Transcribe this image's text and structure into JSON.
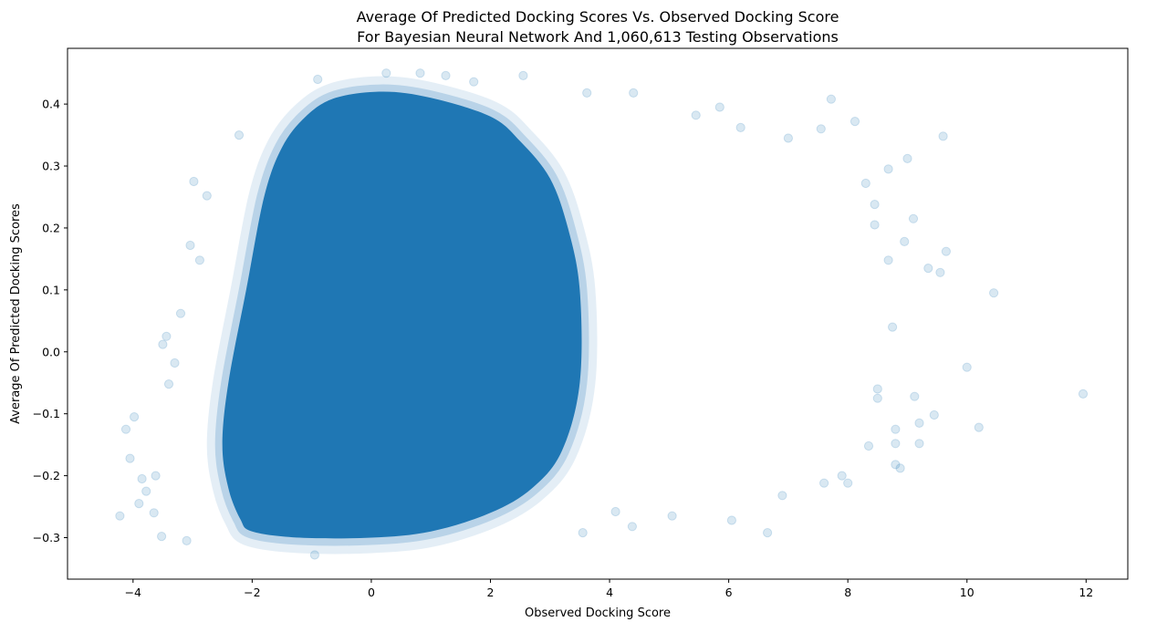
{
  "chart_data": {
    "type": "scatter",
    "title_lines": [
      "Average Of Predicted Docking Scores Vs. Observed Docking Score",
      "For Bayesian Neural Network And 1,060,613 Testing Observations"
    ],
    "xlabel": "Observed Docking Score",
    "ylabel": "Average Of Predicted Docking Scores",
    "xlim": [
      -5.1,
      12.7
    ],
    "ylim": [
      -0.367,
      0.49
    ],
    "x_ticks": [
      -4,
      -2,
      0,
      2,
      4,
      6,
      8,
      10,
      12
    ],
    "x_tick_labels": [
      "−4",
      "−2",
      "0",
      "2",
      "4",
      "6",
      "8",
      "10",
      "12"
    ],
    "y_ticks": [
      -0.3,
      -0.2,
      -0.1,
      0.0,
      0.1,
      0.2,
      0.3,
      0.4
    ],
    "y_tick_labels": [
      "−0.3",
      "−0.2",
      "−0.1",
      "0.0",
      "0.1",
      "0.2",
      "0.3",
      "0.4"
    ],
    "grid": false,
    "legend": "none",
    "series": [
      {
        "color": "#1f77b4",
        "marker_alpha": 0.12,
        "dense_core_outline": [
          [
            -2.0,
            -0.29
          ],
          [
            -1.2,
            -0.3
          ],
          [
            0.0,
            -0.3
          ],
          [
            1.0,
            -0.29
          ],
          [
            2.0,
            -0.26
          ],
          [
            2.7,
            -0.22
          ],
          [
            3.2,
            -0.16
          ],
          [
            3.5,
            -0.05
          ],
          [
            3.5,
            0.1
          ],
          [
            3.3,
            0.2
          ],
          [
            3.0,
            0.28
          ],
          [
            2.5,
            0.34
          ],
          [
            2.0,
            0.38
          ],
          [
            1.0,
            0.41
          ],
          [
            0.2,
            0.42
          ],
          [
            -0.6,
            0.41
          ],
          [
            -1.1,
            0.38
          ],
          [
            -1.5,
            0.33
          ],
          [
            -1.8,
            0.25
          ],
          [
            -2.1,
            0.1
          ],
          [
            -2.4,
            -0.05
          ],
          [
            -2.5,
            -0.15
          ],
          [
            -2.4,
            -0.22
          ],
          [
            -2.2,
            -0.27
          ]
        ],
        "outlier_points": [
          [
            11.95,
            -0.068
          ],
          [
            10.45,
            0.095
          ],
          [
            10.2,
            -0.122
          ],
          [
            10.0,
            -0.025
          ],
          [
            9.6,
            0.348
          ],
          [
            9.65,
            0.162
          ],
          [
            9.55,
            0.128
          ],
          [
            9.45,
            -0.102
          ],
          [
            9.35,
            0.135
          ],
          [
            9.2,
            -0.148
          ],
          [
            9.2,
            -0.115
          ],
          [
            9.12,
            -0.072
          ],
          [
            9.1,
            0.215
          ],
          [
            9.0,
            0.312
          ],
          [
            8.95,
            0.178
          ],
          [
            8.88,
            -0.188
          ],
          [
            8.8,
            -0.182
          ],
          [
            8.8,
            -0.148
          ],
          [
            8.8,
            -0.125
          ],
          [
            8.75,
            0.04
          ],
          [
            8.68,
            0.295
          ],
          [
            8.68,
            0.148
          ],
          [
            8.5,
            -0.06
          ],
          [
            8.5,
            -0.075
          ],
          [
            8.45,
            0.205
          ],
          [
            8.45,
            0.238
          ],
          [
            8.35,
            -0.152
          ],
          [
            8.3,
            0.272
          ],
          [
            8.12,
            0.372
          ],
          [
            7.9,
            -0.2
          ],
          [
            7.72,
            0.408
          ],
          [
            -4.22,
            -0.265
          ],
          [
            -4.12,
            -0.125
          ],
          [
            -4.05,
            -0.172
          ],
          [
            -3.98,
            -0.105
          ],
          [
            -3.9,
            -0.245
          ],
          [
            -3.85,
            -0.205
          ],
          [
            -3.78,
            -0.225
          ],
          [
            -3.65,
            -0.26
          ],
          [
            -3.62,
            -0.2
          ],
          [
            -3.52,
            -0.298
          ],
          [
            -3.5,
            0.012
          ],
          [
            -3.44,
            0.025
          ],
          [
            -3.4,
            -0.052
          ],
          [
            -3.3,
            -0.018
          ],
          [
            -3.2,
            0.062
          ],
          [
            -3.1,
            -0.305
          ],
          [
            -3.04,
            0.172
          ],
          [
            -2.98,
            0.275
          ],
          [
            -2.88,
            0.148
          ],
          [
            -2.76,
            0.252
          ],
          [
            -2.22,
            0.35
          ],
          [
            -0.95,
            -0.328
          ],
          [
            -0.9,
            0.44
          ],
          [
            0.25,
            0.45
          ],
          [
            0.82,
            0.45
          ],
          [
            1.25,
            0.446
          ],
          [
            1.72,
            0.436
          ],
          [
            2.55,
            0.446
          ],
          [
            3.55,
            -0.292
          ],
          [
            3.62,
            0.418
          ],
          [
            4.1,
            -0.258
          ],
          [
            4.38,
            -0.282
          ],
          [
            4.4,
            0.418
          ],
          [
            5.05,
            -0.265
          ],
          [
            5.45,
            0.382
          ],
          [
            5.85,
            0.395
          ],
          [
            6.05,
            -0.272
          ],
          [
            6.2,
            0.362
          ],
          [
            6.65,
            -0.292
          ],
          [
            6.9,
            -0.232
          ],
          [
            7.0,
            0.345
          ],
          [
            7.55,
            0.36
          ],
          [
            7.6,
            -0.212
          ],
          [
            8.0,
            -0.212
          ]
        ]
      }
    ]
  }
}
